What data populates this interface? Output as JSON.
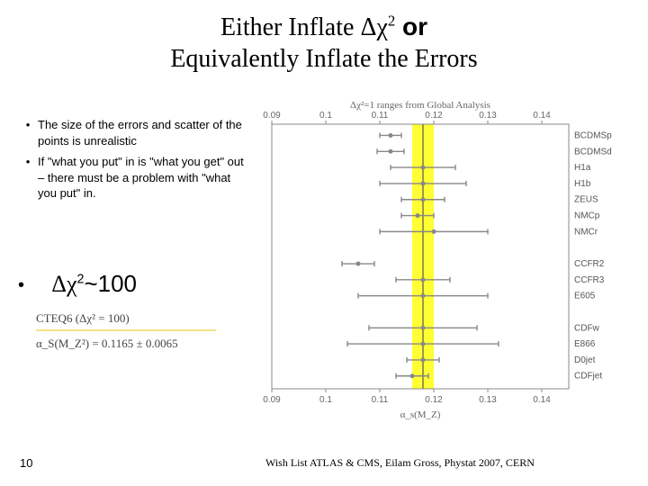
{
  "title": {
    "part1": "Either Inflate ",
    "sym": "Δχ",
    "sup": "2",
    "bold": " or",
    "part2": "Equivalently Inflate the Errors"
  },
  "bullets": [
    "The size of the errors and scatter of the points is unrealistic",
    "If \"what you put\" in is \"what you get\" out – there must be a problem with \"what you put\" in."
  ],
  "big_bullet": {
    "sym": "Δχ",
    "sup": "2",
    "tail": "~100"
  },
  "equation": {
    "line1": "CTEQ6  (Δχ² = 100)",
    "line2": "α_S(M_Z²)  =  0.1165 ± 0.0065"
  },
  "page_number": "10",
  "footer": "Wish List ATLAS & CMS, Eilam Gross, Phystat 2007, CERN",
  "plot": {
    "title": "Δχ²=1 ranges from Global Analysis",
    "xlabel": "α_s(M_Z)",
    "xlim": [
      0.09,
      0.145
    ],
    "xticks": [
      0.09,
      0.1,
      0.11,
      0.12,
      0.13,
      0.14
    ],
    "xtick_labels": [
      "0.09",
      "0.1",
      "0.11",
      "0.12",
      "0.13",
      "0.14"
    ],
    "band": {
      "x_min": 0.116,
      "x_max": 0.12,
      "color": "#ffff33"
    },
    "band_center": 0.118,
    "rows": [
      {
        "label": "BCDMSp",
        "x": 0.112,
        "err": 0.002
      },
      {
        "label": "BCDMSd",
        "x": 0.112,
        "err": 0.0025
      },
      {
        "label": "H1a",
        "x": 0.118,
        "err": 0.006
      },
      {
        "label": "H1b",
        "x": 0.118,
        "err": 0.008
      },
      {
        "label": "ZEUS",
        "x": 0.118,
        "err": 0.004
      },
      {
        "label": "NMCp",
        "x": 0.117,
        "err": 0.003
      },
      {
        "label": "NMCr",
        "x": 0.12,
        "err": 0.01
      },
      {
        "label": "",
        "x": null,
        "err": null
      },
      {
        "label": "CCFR2",
        "x": 0.106,
        "err": 0.003
      },
      {
        "label": "CCFR3",
        "x": 0.118,
        "err": 0.005
      },
      {
        "label": "E605",
        "x": 0.118,
        "err": 0.012
      },
      {
        "label": "",
        "x": null,
        "err": null
      },
      {
        "label": "CDFw",
        "x": 0.118,
        "err": 0.01
      },
      {
        "label": "E866",
        "x": 0.118,
        "err": 0.014
      },
      {
        "label": "D0jet",
        "x": 0.118,
        "err": 0.003
      },
      {
        "label": "CDFjet",
        "x": 0.116,
        "err": 0.003
      }
    ],
    "marker_radius": 2.5,
    "marker_color": "#888888",
    "error_color": "#888888",
    "error_width": 1.4,
    "frame_color": "#888888",
    "background_color": "#ffffff"
  }
}
